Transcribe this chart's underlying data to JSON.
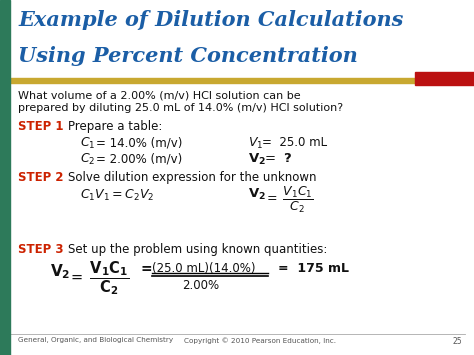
{
  "title_line1": "Example of Dilution Calculations",
  "title_line2": "Using Percent Concentration",
  "title_color": "#1B5EA6",
  "bg_color": "#FFFFFF",
  "sidebar_color": "#2D7A5A",
  "header_bar_gold": "#C8A830",
  "header_bar_red": "#BB1111",
  "step_color": "#CC2200",
  "body_color": "#111111",
  "footer_color": "#555555",
  "footer_left": "General, Organic, and Biological Chemistry",
  "footer_right": "Copyright © 2010 Pearson Education, Inc.",
  "footer_page": "25",
  "figw": 4.74,
  "figh": 3.55,
  "dpi": 100
}
